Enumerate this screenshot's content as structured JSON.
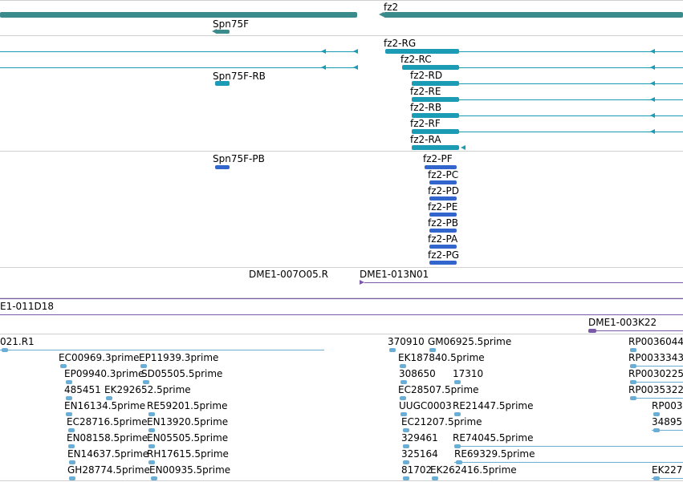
{
  "colors": {
    "gene": "#3a8c8c",
    "transcript": "#1b9cb4",
    "protein": "#3366cc",
    "clone": "#7a5aa8",
    "est": "#6aaed6",
    "separator": "#d0d0d0"
  },
  "tracks": {
    "gene": {
      "labels": [
        "fz2",
        "Spn75F"
      ]
    },
    "transcript": {
      "labels": [
        "fz2-RG",
        "fz2-RC",
        "Spn75F-RB",
        "fz2-RD",
        "fz2-RE",
        "fz2-RB",
        "fz2-RF",
        "fz2-RA"
      ]
    },
    "protein": {
      "labels": [
        "Spn75F-PB",
        "fz2-PF",
        "fz2-PC",
        "fz2-PD",
        "fz2-PE",
        "fz2-PB",
        "fz2-PA",
        "fz2-PG"
      ]
    },
    "clone": {
      "labels": [
        "DME1-007O05.R",
        "DME1-013N01",
        "E1-011D18",
        "DME1-003K22"
      ]
    },
    "est": {
      "labels": [
        "021.R1",
        "370910",
        "GM06925.5prime",
        "RP0036044",
        "EC00969.3prime",
        "EP11939.3prime",
        "EK187840.5prime",
        "RP0033343",
        "EP09940.3prime",
        "SD05505.5prime",
        "308650",
        "17310",
        "RP0030225",
        "485451",
        "EK292652.5prime",
        "EC28507.5prime",
        "RP0035322",
        "EN16134.5prime",
        "RE59201.5prime",
        "UUGC0003",
        "RE21447.5prime",
        "RP003",
        "EC28716.5prime",
        "EN13920.5prime",
        "EC21207.5prime",
        "34895",
        "EN08158.5prime",
        "EN05505.5prime",
        "329461",
        "RE74045.5prime",
        "EN14637.5prime",
        "RH17615.5prime",
        "325164",
        "RE69329.5prime",
        "GH28774.5prime",
        "EN00935.5prime",
        "81702",
        "EK262416.5prime",
        "EK227"
      ]
    }
  }
}
